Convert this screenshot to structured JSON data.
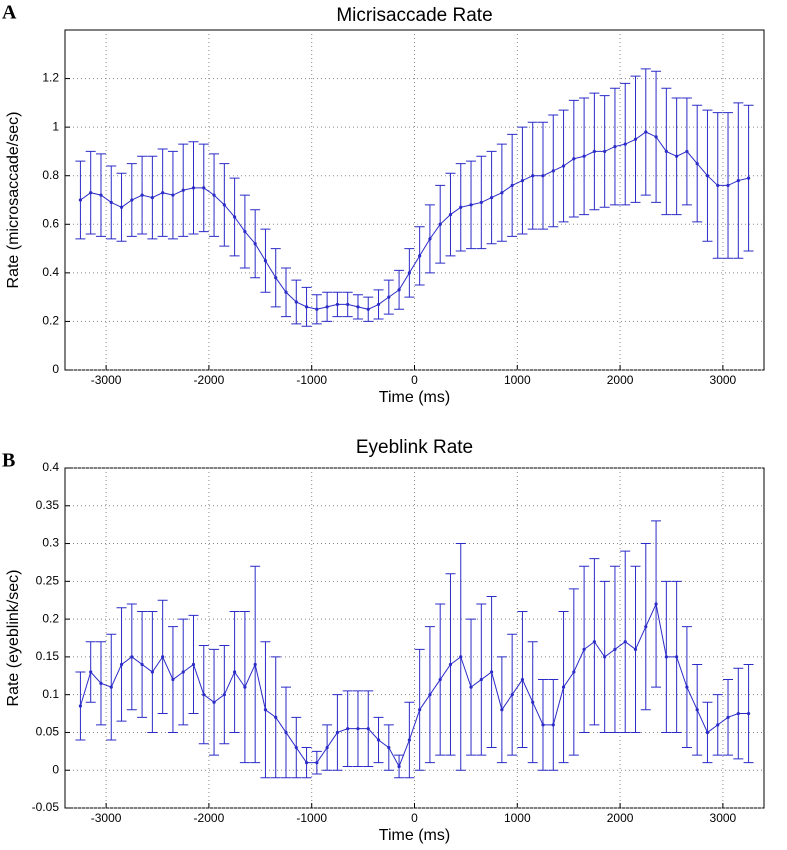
{
  "chart_data": [
    {
      "type": "errorbar",
      "panel": "A",
      "title": "Micrisaccade Rate",
      "xlabel": "Time (ms)",
      "ylabel": "Rate (microsaccade/sec)",
      "xlim": [
        -3400,
        3400
      ],
      "ylim": [
        0,
        1.4
      ],
      "xticks": [
        -3000,
        -2000,
        -1000,
        0,
        1000,
        2000,
        3000
      ],
      "yticks": [
        0,
        0.2,
        0.4,
        0.6,
        0.8,
        1,
        1.2
      ],
      "grid": true,
      "x": [
        -3250,
        -3150,
        -3050,
        -2950,
        -2850,
        -2750,
        -2650,
        -2550,
        -2450,
        -2350,
        -2250,
        -2150,
        -2050,
        -1950,
        -1850,
        -1750,
        -1650,
        -1550,
        -1450,
        -1350,
        -1250,
        -1150,
        -1050,
        -950,
        -850,
        -750,
        -650,
        -550,
        -450,
        -350,
        -250,
        -150,
        -50,
        50,
        150,
        250,
        350,
        450,
        550,
        650,
        750,
        850,
        950,
        1050,
        1150,
        1250,
        1350,
        1450,
        1550,
        1650,
        1750,
        1850,
        1950,
        2050,
        2150,
        2250,
        2350,
        2450,
        2550,
        2650,
        2750,
        2850,
        2950,
        3050,
        3150,
        3250
      ],
      "series": [
        {
          "color": "#2b2bc8",
          "values": [
            0.7,
            0.73,
            0.72,
            0.69,
            0.67,
            0.7,
            0.72,
            0.71,
            0.73,
            0.72,
            0.74,
            0.75,
            0.75,
            0.72,
            0.68,
            0.63,
            0.57,
            0.52,
            0.45,
            0.38,
            0.32,
            0.28,
            0.26,
            0.25,
            0.26,
            0.27,
            0.27,
            0.26,
            0.25,
            0.27,
            0.3,
            0.33,
            0.4,
            0.47,
            0.54,
            0.6,
            0.64,
            0.67,
            0.68,
            0.69,
            0.71,
            0.73,
            0.76,
            0.78,
            0.8,
            0.8,
            0.82,
            0.84,
            0.87,
            0.88,
            0.9,
            0.9,
            0.92,
            0.93,
            0.95,
            0.98,
            0.96,
            0.9,
            0.88,
            0.9,
            0.85,
            0.8,
            0.76,
            0.76,
            0.78,
            0.79
          ],
          "errors": [
            0.16,
            0.17,
            0.17,
            0.15,
            0.14,
            0.15,
            0.16,
            0.17,
            0.18,
            0.18,
            0.19,
            0.19,
            0.18,
            0.17,
            0.17,
            0.16,
            0.15,
            0.14,
            0.13,
            0.12,
            0.1,
            0.09,
            0.08,
            0.06,
            0.06,
            0.05,
            0.05,
            0.05,
            0.05,
            0.06,
            0.07,
            0.08,
            0.1,
            0.12,
            0.14,
            0.16,
            0.17,
            0.18,
            0.18,
            0.19,
            0.19,
            0.2,
            0.21,
            0.22,
            0.22,
            0.22,
            0.23,
            0.23,
            0.24,
            0.24,
            0.24,
            0.23,
            0.24,
            0.25,
            0.26,
            0.26,
            0.27,
            0.26,
            0.24,
            0.22,
            0.24,
            0.27,
            0.3,
            0.3,
            0.32,
            0.3
          ]
        }
      ]
    },
    {
      "type": "errorbar",
      "panel": "B",
      "title": "Eyeblink Rate",
      "xlabel": "Time (ms)",
      "ylabel": "Rate (eyeblink/sec)",
      "xlim": [
        -3400,
        3400
      ],
      "ylim": [
        -0.05,
        0.4
      ],
      "xticks": [
        -3000,
        -2000,
        -1000,
        0,
        1000,
        2000,
        3000
      ],
      "yticks": [
        -0.05,
        0,
        0.05,
        0.1,
        0.15,
        0.2,
        0.25,
        0.3,
        0.35,
        0.4
      ],
      "grid": true,
      "x": [
        -3250,
        -3150,
        -3050,
        -2950,
        -2850,
        -2750,
        -2650,
        -2550,
        -2450,
        -2350,
        -2250,
        -2150,
        -2050,
        -1950,
        -1850,
        -1750,
        -1650,
        -1550,
        -1450,
        -1350,
        -1250,
        -1150,
        -1050,
        -950,
        -850,
        -750,
        -650,
        -550,
        -450,
        -350,
        -250,
        -150,
        -50,
        50,
        150,
        250,
        350,
        450,
        550,
        650,
        750,
        850,
        950,
        1050,
        1150,
        1250,
        1350,
        1450,
        1550,
        1650,
        1750,
        1850,
        1950,
        2050,
        2150,
        2250,
        2350,
        2450,
        2550,
        2650,
        2750,
        2850,
        2950,
        3050,
        3150,
        3250
      ],
      "series": [
        {
          "color": "#2b2bc8",
          "values": [
            0.085,
            0.13,
            0.115,
            0.11,
            0.14,
            0.15,
            0.14,
            0.13,
            0.15,
            0.12,
            0.13,
            0.14,
            0.1,
            0.09,
            0.1,
            0.13,
            0.11,
            0.14,
            0.08,
            0.07,
            0.05,
            0.03,
            0.01,
            0.01,
            0.03,
            0.05,
            0.055,
            0.055,
            0.055,
            0.04,
            0.03,
            0.005,
            0.04,
            0.08,
            0.1,
            0.12,
            0.14,
            0.15,
            0.11,
            0.12,
            0.13,
            0.08,
            0.1,
            0.12,
            0.09,
            0.06,
            0.06,
            0.11,
            0.13,
            0.16,
            0.17,
            0.15,
            0.16,
            0.17,
            0.16,
            0.19,
            0.22,
            0.15,
            0.15,
            0.11,
            0.08,
            0.05,
            0.06,
            0.07,
            0.075,
            0.075
          ],
          "errors": [
            0.045,
            0.04,
            0.055,
            0.07,
            0.075,
            0.07,
            0.07,
            0.08,
            0.075,
            0.07,
            0.07,
            0.065,
            0.065,
            0.07,
            0.065,
            0.08,
            0.1,
            0.13,
            0.09,
            0.08,
            0.06,
            0.04,
            0.02,
            0.015,
            0.03,
            0.05,
            0.05,
            0.05,
            0.05,
            0.03,
            0.03,
            0.015,
            0.05,
            0.08,
            0.09,
            0.1,
            0.12,
            0.15,
            0.09,
            0.1,
            0.1,
            0.07,
            0.08,
            0.09,
            0.08,
            0.06,
            0.06,
            0.1,
            0.11,
            0.11,
            0.11,
            0.1,
            0.11,
            0.12,
            0.11,
            0.11,
            0.11,
            0.1,
            0.1,
            0.08,
            0.06,
            0.04,
            0.04,
            0.05,
            0.06,
            0.065
          ]
        }
      ]
    }
  ]
}
